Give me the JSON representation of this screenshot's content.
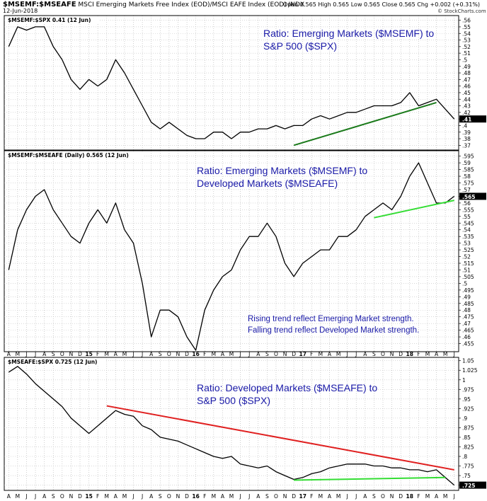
{
  "header": {
    "symbol": "$MSEMF:$MSEAFE",
    "description": "MSCI Emerging Markets Free Index (EOD)/MSCI EAFE Index (EOD) INDX",
    "date": "12-Jun-2018",
    "quote": "Open 0.565 High 0.565 Low 0.565 Close 0.565 Chg +0.002 (+0.31%)",
    "logo": "© StockCharts.com"
  },
  "x_axis": {
    "labels": [
      "A",
      "M",
      "J",
      "J",
      "A",
      "S",
      "O",
      "N",
      "D",
      "15",
      "F",
      "M",
      "A",
      "M",
      "J",
      "J",
      "A",
      "S",
      "O",
      "N",
      "D",
      "16",
      "F",
      "M",
      "A",
      "M",
      "J",
      "J",
      "A",
      "S",
      "O",
      "N",
      "D",
      "17",
      "F",
      "M",
      "A",
      "M",
      "J",
      "J",
      "A",
      "S",
      "O",
      "N",
      "D",
      "18",
      "F",
      "M",
      "A",
      "M",
      "J"
    ],
    "start": "2014-04",
    "end": "2018-06"
  },
  "colors": {
    "annotation": "#1a1aa8",
    "dark_green": "#1a7a1a",
    "light_green": "#33dd33",
    "red": "#e02020",
    "price": "#000000"
  },
  "chart_data": [
    {
      "type": "line",
      "panel_label": "$MSEMF:$SPX 0.41 (12 Jun)",
      "annotation": [
        "Ratio: Emerging Markets ($MSEMF) to",
        "S&P 500 ($SPX)"
      ],
      "yticks": [
        0.37,
        0.38,
        0.39,
        0.4,
        0.41,
        0.42,
        0.43,
        0.44,
        0.45,
        0.46,
        0.47,
        0.48,
        0.49,
        0.5,
        0.51,
        0.52,
        0.53,
        0.54,
        0.55,
        0.56
      ],
      "ylim": [
        0.365,
        0.565
      ],
      "last_value": 0.41,
      "x": [
        "2014-04",
        "2014-05",
        "2014-06",
        "2014-07",
        "2014-08",
        "2014-09",
        "2014-10",
        "2014-11",
        "2014-12",
        "2015-01",
        "2015-02",
        "2015-03",
        "2015-04",
        "2015-05",
        "2015-06",
        "2015-07",
        "2015-08",
        "2015-09",
        "2015-10",
        "2015-11",
        "2015-12",
        "2016-01",
        "2016-02",
        "2016-03",
        "2016-04",
        "2016-05",
        "2016-06",
        "2016-07",
        "2016-08",
        "2016-09",
        "2016-10",
        "2016-11",
        "2016-12",
        "2017-01",
        "2017-02",
        "2017-03",
        "2017-04",
        "2017-05",
        "2017-06",
        "2017-07",
        "2017-08",
        "2017-09",
        "2017-10",
        "2017-11",
        "2017-12",
        "2018-01",
        "2018-02",
        "2018-03",
        "2018-04",
        "2018-05",
        "2018-06"
      ],
      "values": [
        0.52,
        0.55,
        0.545,
        0.55,
        0.55,
        0.52,
        0.5,
        0.47,
        0.455,
        0.47,
        0.46,
        0.47,
        0.5,
        0.48,
        0.455,
        0.43,
        0.405,
        0.395,
        0.405,
        0.395,
        0.385,
        0.38,
        0.38,
        0.39,
        0.39,
        0.38,
        0.39,
        0.39,
        0.395,
        0.395,
        0.4,
        0.395,
        0.4,
        0.4,
        0.41,
        0.415,
        0.41,
        0.415,
        0.42,
        0.42,
        0.425,
        0.43,
        0.43,
        0.43,
        0.435,
        0.45,
        0.43,
        0.435,
        0.44,
        0.425,
        0.41
      ],
      "trendlines": [
        {
          "color": "dark_green",
          "from": [
            "2016-12",
            0.37
          ],
          "to": [
            "2018-04",
            0.435
          ]
        }
      ]
    },
    {
      "type": "line",
      "panel_label": "$MSEMF:$MSEAFE (Daily) 0.565 (12 Jun)",
      "annotation": [
        "Ratio: Emerging Markets ($MSEMF) to",
        "Developed Markets ($MSEAFE)"
      ],
      "note": [
        "Rising trend reflect Emerging Market strength.",
        "Falling trend reflect Developed Market strength."
      ],
      "yticks": [
        0.455,
        0.46,
        0.465,
        0.47,
        0.475,
        0.48,
        0.485,
        0.49,
        0.495,
        0.5,
        0.505,
        0.51,
        0.515,
        0.52,
        0.525,
        0.53,
        0.535,
        0.54,
        0.545,
        0.55,
        0.555,
        0.56,
        0.565,
        0.57,
        0.575,
        0.58,
        0.585,
        0.59,
        0.595
      ],
      "ylim": [
        0.45,
        0.598
      ],
      "last_value": 0.565,
      "x": [
        "2014-04",
        "2014-05",
        "2014-06",
        "2014-07",
        "2014-08",
        "2014-09",
        "2014-10",
        "2014-11",
        "2014-12",
        "2015-01",
        "2015-02",
        "2015-03",
        "2015-04",
        "2015-05",
        "2015-06",
        "2015-07",
        "2015-08",
        "2015-09",
        "2015-10",
        "2015-11",
        "2015-12",
        "2016-01",
        "2016-02",
        "2016-03",
        "2016-04",
        "2016-05",
        "2016-06",
        "2016-07",
        "2016-08",
        "2016-09",
        "2016-10",
        "2016-11",
        "2016-12",
        "2017-01",
        "2017-02",
        "2017-03",
        "2017-04",
        "2017-05",
        "2017-06",
        "2017-07",
        "2017-08",
        "2017-09",
        "2017-10",
        "2017-11",
        "2017-12",
        "2018-01",
        "2018-02",
        "2018-03",
        "2018-04",
        "2018-05",
        "2018-06"
      ],
      "values": [
        0.51,
        0.54,
        0.555,
        0.565,
        0.57,
        0.555,
        0.545,
        0.535,
        0.53,
        0.545,
        0.555,
        0.545,
        0.56,
        0.54,
        0.53,
        0.5,
        0.46,
        0.48,
        0.48,
        0.475,
        0.46,
        0.45,
        0.48,
        0.495,
        0.505,
        0.51,
        0.525,
        0.535,
        0.535,
        0.545,
        0.535,
        0.515,
        0.505,
        0.515,
        0.52,
        0.525,
        0.525,
        0.535,
        0.535,
        0.54,
        0.55,
        0.555,
        0.56,
        0.555,
        0.565,
        0.58,
        0.59,
        0.575,
        0.56,
        0.56,
        0.565
      ],
      "trendlines": [
        {
          "color": "light_green",
          "from": [
            "2017-09",
            0.549
          ],
          "to": [
            "2018-06",
            0.562
          ]
        }
      ]
    },
    {
      "type": "line",
      "panel_label": "$MSEAFE:$SPX 0.725 (12 Jun)",
      "annotation": [
        "Ratio: Developed Markets ($MSEAFE) to",
        "S&P 500 ($SPX)"
      ],
      "yticks": [
        0.725,
        0.75,
        0.775,
        0.8,
        0.825,
        0.85,
        0.875,
        0.9,
        0.925,
        0.95,
        0.975,
        1.0,
        1.025,
        1.05
      ],
      "ylim": [
        0.715,
        1.055
      ],
      "last_value": 0.725,
      "x": [
        "2014-04",
        "2014-05",
        "2014-06",
        "2014-07",
        "2014-08",
        "2014-09",
        "2014-10",
        "2014-11",
        "2014-12",
        "2015-01",
        "2015-02",
        "2015-03",
        "2015-04",
        "2015-05",
        "2015-06",
        "2015-07",
        "2015-08",
        "2015-09",
        "2015-10",
        "2015-11",
        "2015-12",
        "2016-01",
        "2016-02",
        "2016-03",
        "2016-04",
        "2016-05",
        "2016-06",
        "2016-07",
        "2016-08",
        "2016-09",
        "2016-10",
        "2016-11",
        "2016-12",
        "2017-01",
        "2017-02",
        "2017-03",
        "2017-04",
        "2017-05",
        "2017-06",
        "2017-07",
        "2017-08",
        "2017-09",
        "2017-10",
        "2017-11",
        "2017-12",
        "2018-01",
        "2018-02",
        "2018-03",
        "2018-04",
        "2018-05",
        "2018-06"
      ],
      "values": [
        1.02,
        1.035,
        1.015,
        0.99,
        0.97,
        0.95,
        0.93,
        0.9,
        0.88,
        0.86,
        0.88,
        0.9,
        0.92,
        0.91,
        0.905,
        0.88,
        0.87,
        0.85,
        0.845,
        0.84,
        0.83,
        0.82,
        0.81,
        0.8,
        0.795,
        0.8,
        0.78,
        0.775,
        0.77,
        0.775,
        0.76,
        0.75,
        0.74,
        0.745,
        0.755,
        0.76,
        0.77,
        0.775,
        0.78,
        0.78,
        0.78,
        0.775,
        0.775,
        0.77,
        0.77,
        0.765,
        0.765,
        0.76,
        0.765,
        0.745,
        0.725
      ],
      "trendlines": [
        {
          "color": "red",
          "from": [
            "2015-03",
            0.932
          ],
          "to": [
            "2018-06",
            0.765
          ]
        },
        {
          "color": "light_green",
          "from": [
            "2016-12",
            0.738
          ],
          "to": [
            "2018-05",
            0.745
          ]
        }
      ]
    }
  ]
}
